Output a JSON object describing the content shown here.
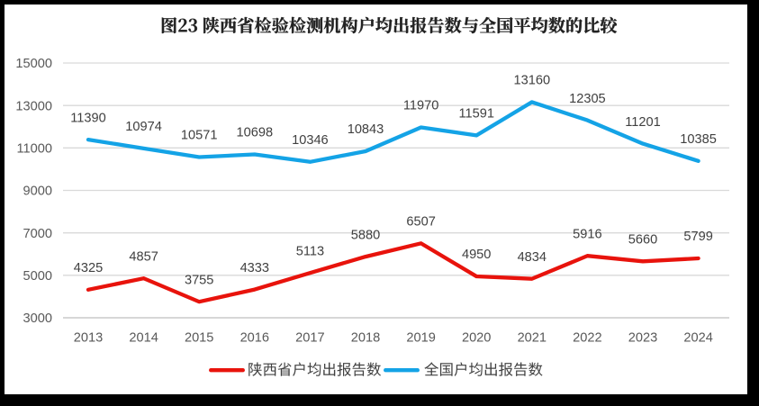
{
  "image_frame": {
    "background": "#000000",
    "canvas_background": "#ffffff"
  },
  "chart_data": {
    "type": "line",
    "title": "图23 陕西省检验检测机构户均出报告数与全国平均数的比较",
    "categories": [
      "2013",
      "2014",
      "2015",
      "2016",
      "2017",
      "2018",
      "2019",
      "2020",
      "2021",
      "2022",
      "2023",
      "2024"
    ],
    "series": [
      {
        "name": "陕西省户均出报告数",
        "color": "#e8130c",
        "values": [
          4325,
          4857,
          3755,
          4333,
          5113,
          5880,
          6507,
          4950,
          4834,
          5916,
          5660,
          5799
        ]
      },
      {
        "name": "全国户均出报告数",
        "color": "#14a3e6",
        "values": [
          11390,
          10974,
          10571,
          10698,
          10346,
          10843,
          11970,
          11591,
          13160,
          12305,
          11201,
          10385
        ]
      }
    ],
    "ylim": [
      3000,
      15000
    ],
    "yticks": [
      15000,
      13000,
      11000,
      9000,
      7000,
      5000,
      3000
    ],
    "grid": true,
    "data_labels": "above",
    "legend_position": "bottom",
    "colors": {
      "gridline": "#d9d9d9",
      "axis_line": "#bfbfbf",
      "axis_label": "#595959",
      "data_label": "#404040",
      "title": "#222222",
      "legend_label": "#404040"
    }
  }
}
